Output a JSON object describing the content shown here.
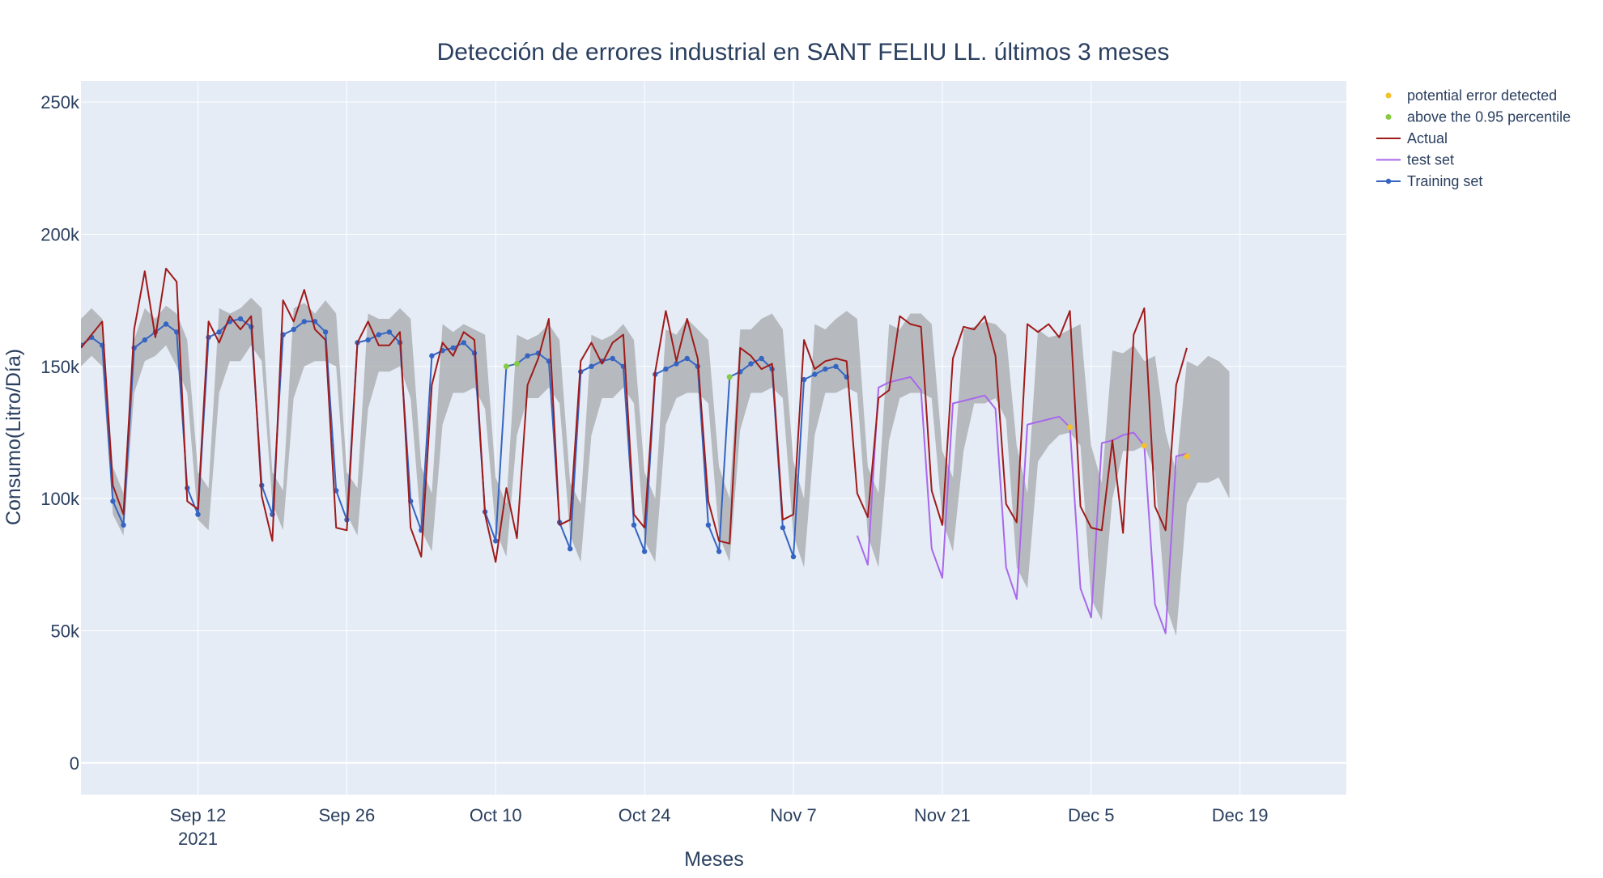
{
  "chart_data": {
    "type": "line",
    "title": "Detección de errores industrial en SANT FELIU LL. últimos 3 meses",
    "xlabel": "Meses",
    "ylabel": "Consumo(Litro/Día)",
    "x_date_range": [
      "2021-09-01",
      "2021-12-29"
    ],
    "ylim": [
      -12000,
      258000
    ],
    "x_ticks": [
      {
        "date": "2021-09-12",
        "label": "Sep 12",
        "sublabel": "2021"
      },
      {
        "date": "2021-09-26",
        "label": "Sep 26",
        "sublabel": ""
      },
      {
        "date": "2021-10-10",
        "label": "Oct 10",
        "sublabel": ""
      },
      {
        "date": "2021-10-24",
        "label": "Oct 24",
        "sublabel": ""
      },
      {
        "date": "2021-11-07",
        "label": "Nov 7",
        "sublabel": ""
      },
      {
        "date": "2021-11-21",
        "label": "Nov 21",
        "sublabel": ""
      },
      {
        "date": "2021-12-05",
        "label": "Dec 5",
        "sublabel": ""
      },
      {
        "date": "2021-12-19",
        "label": "Dec 19",
        "sublabel": ""
      }
    ],
    "y_ticks": [
      {
        "value": 0,
        "label": "0"
      },
      {
        "value": 50000,
        "label": "50k"
      },
      {
        "value": 100000,
        "label": "100k"
      },
      {
        "value": 150000,
        "label": "150k"
      },
      {
        "value": 200000,
        "label": "200k"
      },
      {
        "value": 250000,
        "label": "250k"
      }
    ],
    "grid": true,
    "legend_position": "top-right",
    "colors": {
      "plot_bg": "#e5ecf6",
      "grid": "#ffffff",
      "band": "#a6a9ab",
      "actual": "#a01a1a",
      "test": "#a868ec",
      "training": "#3564c2",
      "error": "#f6c02d",
      "percentile": "#86cb42",
      "text": "#2a3f5f"
    },
    "legend": [
      {
        "key": "error",
        "label": "potential error detected",
        "symbol": "dot"
      },
      {
        "key": "percentile",
        "label": "above the 0.95 percentile",
        "symbol": "dot"
      },
      {
        "key": "actual",
        "label": "Actual",
        "symbol": "line"
      },
      {
        "key": "test",
        "label": "test set",
        "symbol": "line"
      },
      {
        "key": "training",
        "label": "Training set",
        "symbol": "linedot"
      }
    ],
    "series": [
      {
        "key": "band",
        "start": "2021-09-01",
        "upper": [
          168,
          172,
          168,
          112,
          102,
          160,
          172,
          168,
          173,
          170,
          160,
          110,
          104,
          172,
          170,
          172,
          176,
          172,
          110,
          103,
          172,
          174,
          170,
          175,
          170,
          110,
          104,
          170,
          168,
          168,
          172,
          168,
          112,
          102,
          166,
          163,
          166,
          164,
          162,
          108,
          98,
          162,
          160,
          162,
          166,
          160,
          106,
          98,
          162,
          160,
          162,
          166,
          160,
          110,
          100,
          164,
          162,
          168,
          164,
          160,
          112,
          100,
          164,
          164,
          168,
          170,
          164,
          114,
          100,
          166,
          164,
          168,
          171,
          168,
          112,
          102,
          166,
          164,
          170,
          170,
          166,
          118,
          108,
          164,
          165,
          167,
          166,
          162,
          120,
          102,
          164,
          161,
          162,
          164,
          166,
          120,
          106,
          156,
          155,
          158,
          152,
          154,
          125,
          110,
          152,
          150,
          154,
          152,
          148
        ],
        "lower": [
          150,
          154,
          150,
          94,
          86,
          140,
          152,
          154,
          158,
          150,
          140,
          92,
          88,
          140,
          152,
          152,
          158,
          152,
          98,
          88,
          138,
          150,
          152,
          152,
          150,
          94,
          86,
          134,
          148,
          148,
          150,
          138,
          88,
          80,
          128,
          140,
          140,
          142,
          134,
          88,
          78,
          124,
          138,
          138,
          142,
          136,
          86,
          76,
          124,
          138,
          138,
          142,
          136,
          84,
          76,
          128,
          138,
          140,
          140,
          136,
          86,
          76,
          126,
          140,
          140,
          142,
          138,
          86,
          74,
          124,
          140,
          140,
          142,
          140,
          86,
          74,
          122,
          138,
          140,
          140,
          138,
          92,
          80,
          118,
          136,
          136,
          138,
          130,
          74,
          66,
          114,
          120,
          124,
          125,
          120,
          62,
          54,
          100,
          118,
          118,
          120,
          110,
          60,
          48,
          98,
          106,
          106,
          108,
          100
        ]
      },
      {
        "key": "actual",
        "start": "2021-09-01",
        "values": [
          156,
          161,
          166,
          104,
          93,
          163,
          185,
          160,
          186,
          181,
          98,
          95,
          166,
          158,
          168,
          163,
          168,
          100,
          83,
          174,
          166,
          178,
          163,
          159,
          88,
          87,
          158,
          166,
          157,
          157,
          162,
          88,
          77,
          142,
          158,
          153,
          162,
          159,
          93,
          75,
          103,
          84,
          142,
          152,
          167,
          89,
          91,
          151,
          158,
          150,
          158,
          161,
          93,
          88,
          147,
          170,
          151,
          167,
          152,
          98,
          83,
          82,
          156,
          153,
          148,
          150,
          91,
          93,
          159,
          148,
          151,
          152,
          151,
          101,
          92,
          137,
          140,
          168,
          165,
          164,
          102,
          89,
          152,
          164,
          163,
          168,
          153,
          97,
          90,
          165,
          162,
          165,
          160,
          170,
          96,
          88,
          87,
          121,
          86,
          161,
          171,
          96,
          87,
          142,
          156
        ],
        "pad": 1000
      },
      {
        "key": "training",
        "start": "2021-09-01",
        "values": [
          158,
          161,
          158,
          99,
          90,
          157,
          160,
          163,
          166,
          163,
          104,
          94,
          161,
          163,
          167,
          168,
          165,
          105,
          94,
          162,
          164,
          167,
          167,
          163,
          103,
          92,
          159,
          160,
          162,
          163,
          159,
          99,
          88,
          154,
          156,
          157,
          159,
          155,
          95,
          84,
          150,
          151,
          154,
          155,
          152,
          91,
          81,
          148,
          150,
          152,
          153,
          150,
          90,
          80,
          147,
          149,
          151,
          153,
          150,
          90,
          80,
          146,
          148,
          151,
          153,
          149,
          89,
          78,
          145,
          147,
          149,
          150,
          146
        ]
      },
      {
        "key": "test",
        "start": "2021-11-13",
        "values": [
          86,
          75,
          142,
          144,
          145,
          146,
          141,
          81,
          70,
          136,
          137,
          138,
          139,
          134,
          74,
          62,
          128,
          129,
          130,
          131,
          127,
          66,
          55,
          121,
          122,
          124,
          125,
          120,
          60,
          49,
          116,
          117
        ]
      },
      {
        "key": "percentile",
        "points": [
          {
            "date": "2021-10-11",
            "value": 150
          },
          {
            "date": "2021-10-12",
            "value": 151
          },
          {
            "date": "2021-11-01",
            "value": 146
          }
        ]
      },
      {
        "key": "error",
        "points": [
          {
            "date": "2021-12-03",
            "value": 127
          },
          {
            "date": "2021-12-10",
            "value": 120
          },
          {
            "date": "2021-12-14",
            "value": 116
          }
        ]
      }
    ]
  }
}
